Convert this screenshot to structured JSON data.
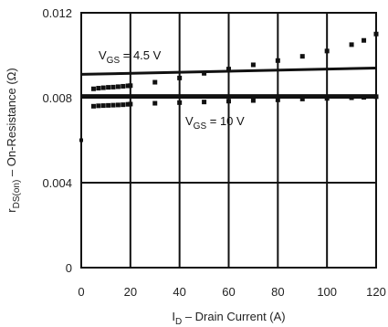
{
  "chart_data": {
    "type": "scatter",
    "title": "",
    "xlabel": {
      "prefix": "I",
      "sub": "D",
      "suffix": " – Drain Current (A)"
    },
    "ylabel": {
      "prefix": "r",
      "sub": "DS(on)",
      "suffix": " – On-Resistance (Ω)"
    },
    "xlim": [
      0,
      120
    ],
    "ylim": [
      0,
      0.012
    ],
    "xticks": [
      0,
      20,
      40,
      60,
      80,
      100,
      120
    ],
    "xtick_labels": [
      "0",
      "20",
      "40",
      "60",
      "80",
      "100",
      "120"
    ],
    "yticks": [
      0,
      0.004,
      0.008,
      0.012
    ],
    "ytick_labels": [
      "0",
      "0.004",
      "0.008",
      "0.012"
    ],
    "grid": true,
    "series": [
      {
        "name": "VGS = 4.5 V",
        "label": {
          "prefix": "V",
          "sub": "GS",
          "suffix": " = 4.5 V"
        },
        "points": [
          [
            5,
            0.00842
          ],
          [
            7,
            0.00845
          ],
          [
            9,
            0.00847
          ],
          [
            11,
            0.00849
          ],
          [
            13,
            0.0085
          ],
          [
            15,
            0.00852
          ],
          [
            17,
            0.00854
          ],
          [
            19,
            0.00856
          ],
          [
            20,
            0.00857
          ],
          [
            30,
            0.00873
          ],
          [
            40,
            0.00893
          ],
          [
            50,
            0.00915
          ],
          [
            60,
            0.00935
          ],
          [
            70,
            0.00955
          ],
          [
            80,
            0.00975
          ],
          [
            90,
            0.00995
          ],
          [
            100,
            0.0102
          ],
          [
            110,
            0.0105
          ],
          [
            115,
            0.0107
          ],
          [
            120,
            0.011
          ]
        ],
        "line": [
          [
            0,
            0.0091
          ],
          [
            120,
            0.0094
          ]
        ]
      },
      {
        "name": "VGS = 10 V",
        "label": {
          "prefix": "V",
          "sub": "GS",
          "suffix": " = 10 V"
        },
        "points": [
          [
            5,
            0.0076
          ],
          [
            7,
            0.00762
          ],
          [
            9,
            0.00763
          ],
          [
            11,
            0.00764
          ],
          [
            13,
            0.00765
          ],
          [
            15,
            0.00766
          ],
          [
            17,
            0.00767
          ],
          [
            19,
            0.00769
          ],
          [
            20,
            0.0077
          ],
          [
            30,
            0.00774
          ],
          [
            40,
            0.00777
          ],
          [
            50,
            0.0078
          ],
          [
            60,
            0.00784
          ],
          [
            70,
            0.00787
          ],
          [
            80,
            0.0079
          ],
          [
            90,
            0.00794
          ],
          [
            100,
            0.00797
          ],
          [
            110,
            0.008
          ],
          [
            115,
            0.00802
          ],
          [
            120,
            0.00805
          ]
        ],
        "line": [
          [
            0,
            0.0081
          ],
          [
            120,
            0.0081
          ]
        ]
      }
    ],
    "extra_marks": [
      [
        0,
        0.006
      ]
    ]
  }
}
